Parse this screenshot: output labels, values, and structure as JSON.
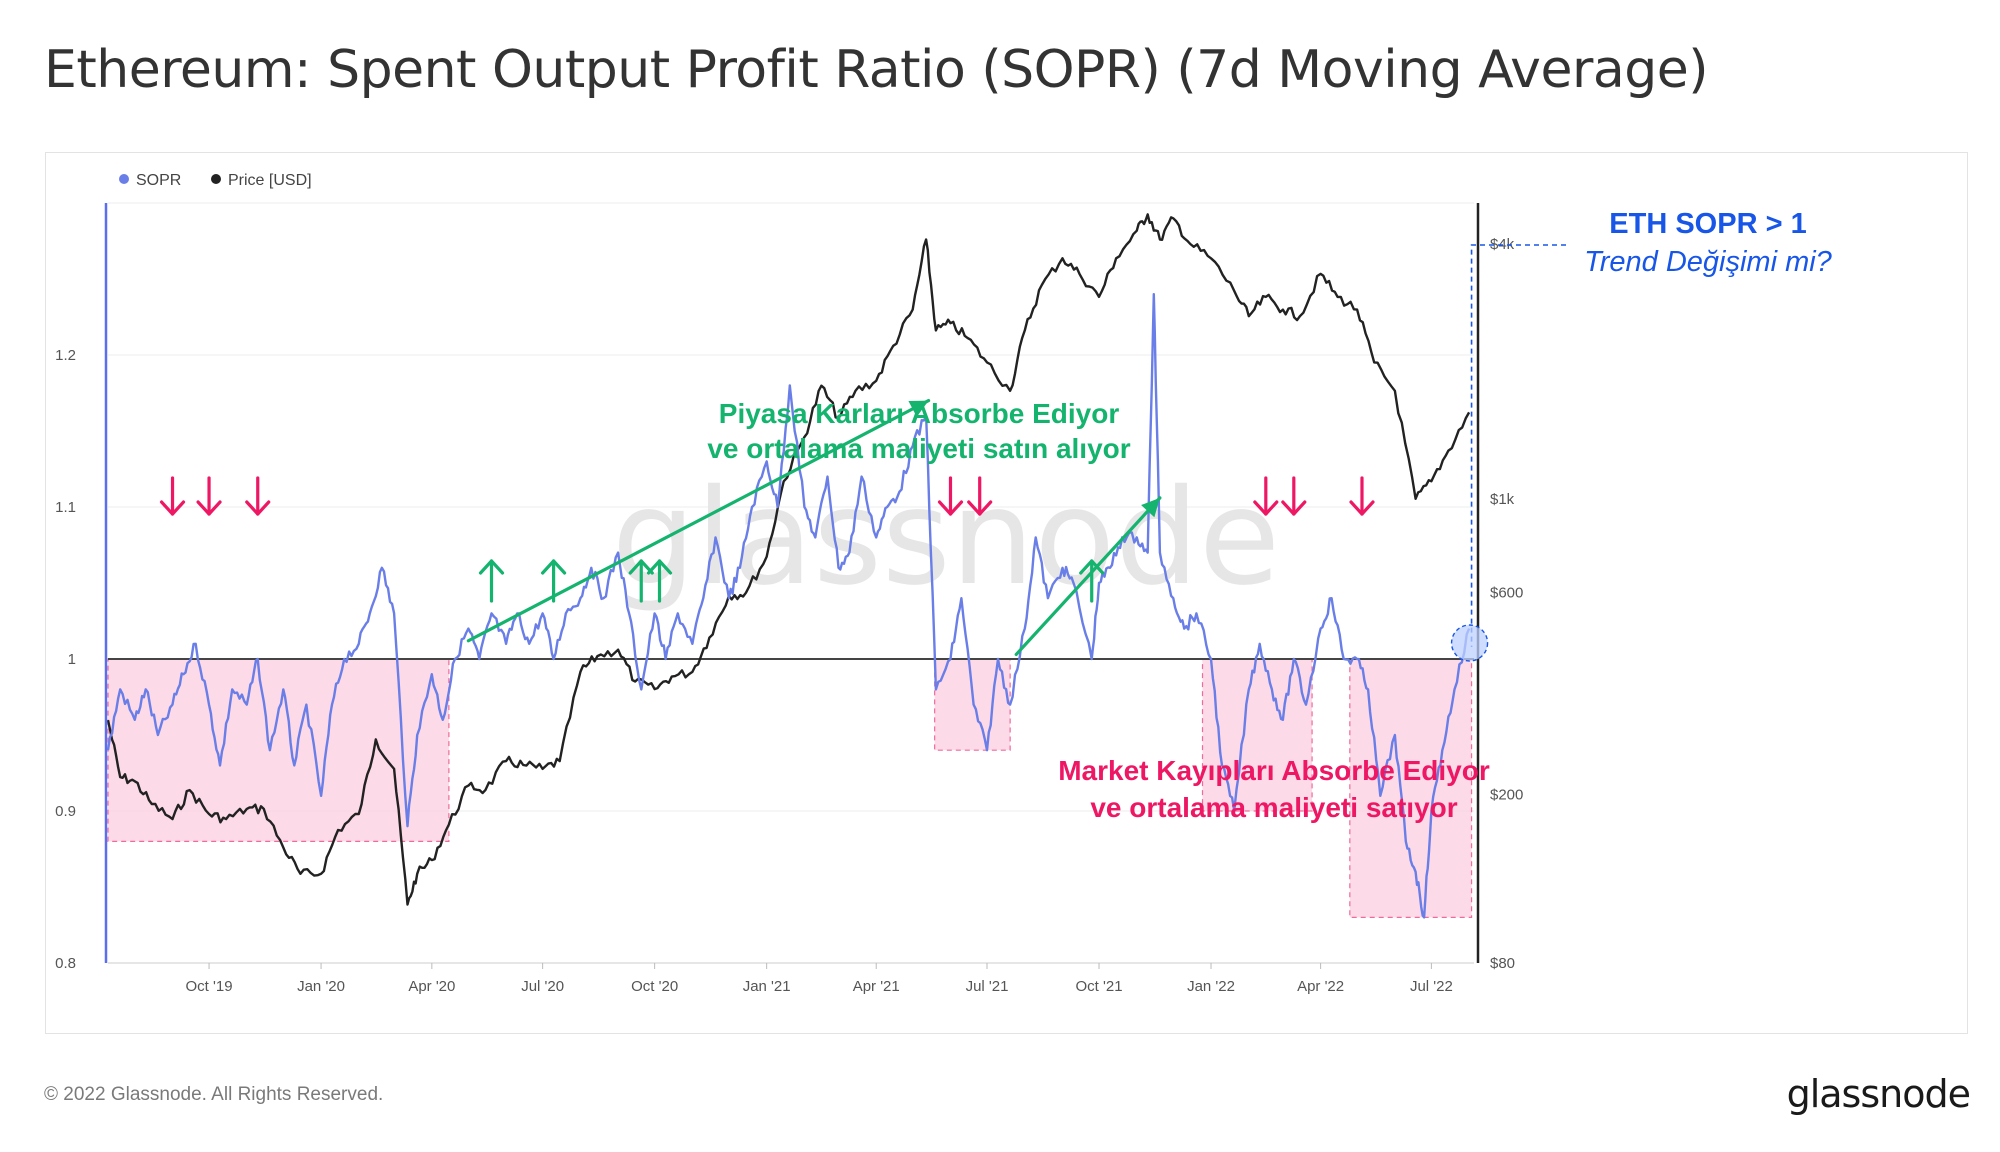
{
  "page": {
    "title": "Ethereum: Spent Output Profit Ratio (SOPR) (7d Moving Average)",
    "copyright": "© 2022 Glassnode. All Rights Reserved.",
    "logo": "glassnode",
    "watermark": "glassnode"
  },
  "colors": {
    "sopr": "#6a7ee8",
    "price": "#222222",
    "pink_zone": "#fbd3e3",
    "pink_border": "#f06a9a",
    "green": "#14b36e",
    "red": "#ee1764",
    "blue": "#1856e8",
    "baseline": "#444444"
  },
  "annotations": {
    "green_line1": "Piyasa Karları Absorbe Ediyor",
    "green_line2": "ve ortalama maliyeti satın alıyor",
    "red_line1": "Market Kayıpları Absorbe Ediyor",
    "red_line2": "ve ortalama maliyeti satıyor",
    "blue_line1": "ETH SOPR > 1",
    "blue_line2": "Trend Değişimi mi?",
    "down_arrows": [
      "2019-09-01",
      "2019-10-01",
      "2019-11-10",
      "2021-06-01",
      "2021-06-25",
      "2022-02-15",
      "2022-03-10",
      "2022-05-05"
    ],
    "up_arrows": [
      "2020-05-20",
      "2020-07-10",
      "2020-09-20",
      "2020-10-05",
      "2021-09-25"
    ],
    "pink_zones": [
      {
        "start": "2019-07-10",
        "end": "2020-04-15",
        "sopr_top": 1.0,
        "sopr_bottom": 0.88
      },
      {
        "start": "2021-05-19",
        "end": "2021-07-20",
        "sopr_top": 1.0,
        "sopr_bottom": 0.94
      },
      {
        "start": "2021-12-25",
        "end": "2022-03-25",
        "sopr_top": 1.0,
        "sopr_bottom": 0.9
      },
      {
        "start": "2022-04-25",
        "end": "2022-08-03",
        "sopr_top": 1.0,
        "sopr_bottom": 0.83
      }
    ]
  },
  "chart_data": {
    "type": "line",
    "title": "Ethereum: Spent Output Profit Ratio (SOPR) (7d Moving Average)",
    "xlabel": "",
    "ylabel_left": "",
    "ylabel_right": "",
    "legend": [
      {
        "name": "SOPR",
        "color": "#6a7ee8"
      },
      {
        "name": "Price [USD]",
        "color": "#222222"
      }
    ],
    "legend_position": "top-left",
    "grid": true,
    "x_range": [
      "2019-07-10",
      "2022-08-05"
    ],
    "x_ticks": [
      "Oct '19",
      "Jan '20",
      "Apr '20",
      "Jul '20",
      "Oct '20",
      "Jan '21",
      "Apr '21",
      "Jul '21",
      "Oct '21",
      "Jan '22",
      "Apr '22",
      "Jul '22"
    ],
    "x_tick_dates": [
      "2019-10-01",
      "2020-01-01",
      "2020-04-01",
      "2020-07-01",
      "2020-10-01",
      "2021-01-01",
      "2021-04-01",
      "2021-07-01",
      "2021-10-01",
      "2022-01-01",
      "2022-04-01",
      "2022-07-01"
    ],
    "y_left": {
      "range": [
        0.8,
        1.3
      ],
      "ticks": [
        0.8,
        0.9,
        1,
        1.1,
        1.2
      ],
      "tick_labels": [
        "0.8",
        "0.9",
        "1",
        "1.1",
        "1.2"
      ],
      "baseline": 1.0
    },
    "y_right": {
      "scale": "log",
      "range": [
        80,
        5000
      ],
      "ticks": [
        80,
        200,
        600,
        1000,
        4000
      ],
      "tick_labels": [
        "$80",
        "$200",
        "$600",
        "$1k",
        "$4k"
      ]
    },
    "series": [
      {
        "name": "SOPR",
        "axis": "left",
        "x": [
          "2019-07-10",
          "2019-07-20",
          "2019-08-01",
          "2019-08-10",
          "2019-08-20",
          "2019-09-01",
          "2019-09-10",
          "2019-09-20",
          "2019-10-01",
          "2019-10-10",
          "2019-10-20",
          "2019-11-01",
          "2019-11-10",
          "2019-11-20",
          "2019-12-01",
          "2019-12-10",
          "2019-12-20",
          "2020-01-01",
          "2020-01-10",
          "2020-01-20",
          "2020-02-01",
          "2020-02-10",
          "2020-02-20",
          "2020-03-01",
          "2020-03-12",
          "2020-03-20",
          "2020-04-01",
          "2020-04-10",
          "2020-04-20",
          "2020-05-01",
          "2020-05-10",
          "2020-05-20",
          "2020-06-01",
          "2020-06-10",
          "2020-06-20",
          "2020-07-01",
          "2020-07-10",
          "2020-07-20",
          "2020-08-01",
          "2020-08-10",
          "2020-08-20",
          "2020-09-01",
          "2020-09-10",
          "2020-09-20",
          "2020-10-01",
          "2020-10-10",
          "2020-10-20",
          "2020-11-01",
          "2020-11-10",
          "2020-11-20",
          "2020-12-01",
          "2020-12-10",
          "2020-12-20",
          "2021-01-01",
          "2021-01-10",
          "2021-01-20",
          "2021-02-01",
          "2021-02-10",
          "2021-02-20",
          "2021-03-01",
          "2021-03-10",
          "2021-03-20",
          "2021-04-01",
          "2021-04-10",
          "2021-04-20",
          "2021-05-01",
          "2021-05-12",
          "2021-05-20",
          "2021-06-01",
          "2021-06-10",
          "2021-06-20",
          "2021-07-01",
          "2021-07-10",
          "2021-07-20",
          "2021-08-01",
          "2021-08-10",
          "2021-08-20",
          "2021-09-01",
          "2021-09-10",
          "2021-09-25",
          "2021-10-01",
          "2021-10-10",
          "2021-10-20",
          "2021-11-01",
          "2021-11-10",
          "2021-11-15",
          "2021-11-20",
          "2021-12-01",
          "2021-12-10",
          "2021-12-20",
          "2022-01-01",
          "2022-01-10",
          "2022-01-20",
          "2022-02-01",
          "2022-02-10",
          "2022-02-20",
          "2022-03-01",
          "2022-03-10",
          "2022-03-20",
          "2022-04-01",
          "2022-04-10",
          "2022-04-20",
          "2022-05-01",
          "2022-05-10",
          "2022-05-20",
          "2022-06-01",
          "2022-06-10",
          "2022-06-18",
          "2022-06-25",
          "2022-07-01",
          "2022-07-10",
          "2022-07-20",
          "2022-08-01"
        ],
        "values": [
          0.94,
          0.98,
          0.96,
          0.98,
          0.95,
          0.97,
          0.99,
          1.01,
          0.97,
          0.93,
          0.98,
          0.97,
          1.0,
          0.94,
          0.98,
          0.93,
          0.97,
          0.91,
          0.97,
          1.0,
          1.01,
          1.03,
          1.06,
          1.03,
          0.89,
          0.95,
          0.99,
          0.96,
          1.0,
          1.02,
          1.0,
          1.03,
          1.01,
          1.03,
          1.01,
          1.03,
          1.0,
          1.03,
          1.04,
          1.06,
          1.04,
          1.07,
          1.03,
          0.98,
          1.03,
          1.0,
          1.03,
          1.01,
          1.04,
          1.08,
          1.04,
          1.06,
          1.1,
          1.13,
          1.1,
          1.18,
          1.1,
          1.08,
          1.12,
          1.06,
          1.07,
          1.12,
          1.08,
          1.1,
          1.11,
          1.14,
          1.16,
          0.98,
          1.0,
          1.04,
          0.97,
          0.94,
          1.0,
          0.97,
          1.02,
          1.08,
          1.04,
          1.06,
          1.05,
          1.0,
          1.05,
          1.06,
          1.08,
          1.08,
          1.07,
          1.24,
          1.07,
          1.04,
          1.02,
          1.03,
          1.0,
          0.93,
          0.9,
          0.98,
          1.01,
          0.98,
          0.96,
          1.0,
          0.97,
          1.02,
          1.04,
          1.0,
          1.0,
          0.98,
          0.91,
          0.95,
          0.88,
          0.86,
          0.83,
          0.9,
          0.94,
          0.98,
          1.02
        ]
      },
      {
        "name": "Price [USD]",
        "axis": "right",
        "x": [
          "2019-07-10",
          "2019-07-20",
          "2019-08-01",
          "2019-08-15",
          "2019-09-01",
          "2019-09-15",
          "2019-10-01",
          "2019-10-15",
          "2019-11-01",
          "2019-11-15",
          "2019-12-01",
          "2019-12-15",
          "2020-01-01",
          "2020-01-15",
          "2020-02-01",
          "2020-02-15",
          "2020-03-01",
          "2020-03-12",
          "2020-03-20",
          "2020-04-01",
          "2020-04-15",
          "2020-05-01",
          "2020-05-15",
          "2020-06-01",
          "2020-06-15",
          "2020-07-01",
          "2020-07-15",
          "2020-08-01",
          "2020-08-15",
          "2020-09-01",
          "2020-09-15",
          "2020-10-01",
          "2020-10-15",
          "2020-11-01",
          "2020-11-15",
          "2020-12-01",
          "2020-12-15",
          "2021-01-01",
          "2021-01-15",
          "2021-02-01",
          "2021-02-15",
          "2021-03-01",
          "2021-03-15",
          "2021-04-01",
          "2021-04-15",
          "2021-05-01",
          "2021-05-12",
          "2021-05-20",
          "2021-06-01",
          "2021-06-15",
          "2021-07-01",
          "2021-07-20",
          "2021-08-01",
          "2021-08-15",
          "2021-09-01",
          "2021-09-15",
          "2021-10-01",
          "2021-10-15",
          "2021-11-01",
          "2021-11-10",
          "2021-11-20",
          "2021-12-01",
          "2021-12-15",
          "2022-01-01",
          "2022-01-20",
          "2022-02-01",
          "2022-02-15",
          "2022-03-01",
          "2022-03-15",
          "2022-04-01",
          "2022-04-15",
          "2022-05-01",
          "2022-05-15",
          "2022-06-01",
          "2022-06-18",
          "2022-07-01",
          "2022-07-15",
          "2022-08-01"
        ],
        "values": [
          300,
          220,
          215,
          190,
          175,
          205,
          180,
          175,
          185,
          185,
          150,
          130,
          130,
          165,
          180,
          270,
          230,
          110,
          130,
          140,
          170,
          210,
          205,
          240,
          235,
          230,
          240,
          390,
          425,
          440,
          370,
          355,
          380,
          390,
          470,
          590,
          600,
          730,
          1100,
          1400,
          1850,
          1550,
          1800,
          1900,
          2300,
          2800,
          4100,
          2500,
          2600,
          2400,
          2100,
          1800,
          2500,
          3200,
          3700,
          3400,
          3000,
          3700,
          4300,
          4700,
          4100,
          4600,
          4000,
          3700,
          3100,
          2700,
          3000,
          2800,
          2700,
          3400,
          3000,
          2800,
          2100,
          1800,
          1000,
          1100,
          1300,
          1600
        ]
      }
    ]
  }
}
